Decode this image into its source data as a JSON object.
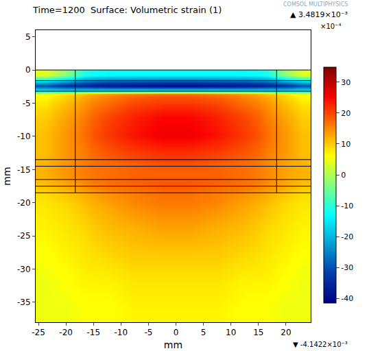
{
  "chart_data": {
    "type": "heatmap",
    "title": "Time=1200  Surface: Volumetric strain (1)",
    "logo": "COMSOL MULTIPHYSICS",
    "x_label": "mm",
    "y_label": "mm",
    "xlim": [
      -25.5,
      24.5
    ],
    "ylim": [
      -38,
      6
    ],
    "xticks": [
      -25,
      -20,
      -15,
      -10,
      -5,
      0,
      5,
      10,
      15,
      20
    ],
    "yticks": [
      -35,
      -30,
      -25,
      -20,
      -15,
      -10,
      -5,
      0,
      5
    ],
    "grid": false,
    "x_edges": [
      -25.5,
      -22,
      -18.3,
      -15,
      -10,
      -5,
      0,
      5,
      10,
      15,
      18.3,
      21.5,
      24.5
    ],
    "y_edges": [
      -38,
      -34,
      -30,
      -26,
      -22,
      -18.5,
      -17.5,
      -16.5,
      -15,
      -13.5,
      -11,
      -8.5,
      -6,
      -4,
      -3.2,
      -1.6,
      0
    ],
    "cells": [
      [
        5,
        5,
        6,
        6,
        7,
        7,
        7,
        7,
        6,
        6,
        5,
        5
      ],
      [
        5,
        6,
        7,
        7,
        8,
        8,
        8,
        8,
        7,
        7,
        6,
        5
      ],
      [
        6,
        7,
        8,
        9,
        10,
        10,
        10,
        10,
        9,
        8,
        7,
        6
      ],
      [
        7,
        8,
        9,
        11,
        12,
        13,
        13,
        12,
        11,
        9,
        8,
        7
      ],
      [
        8,
        9,
        11,
        13,
        15,
        16,
        16,
        15,
        13,
        11,
        9,
        8
      ],
      [
        10,
        12,
        14,
        16,
        17,
        18,
        18,
        17,
        16,
        14,
        12,
        10
      ],
      [
        11,
        13,
        15,
        17,
        18,
        19,
        19,
        18,
        17,
        15,
        13,
        11
      ],
      [
        12,
        14,
        16,
        17,
        18,
        18,
        18,
        18,
        17,
        15,
        13,
        12
      ],
      [
        12,
        14,
        16,
        17,
        18,
        19,
        19,
        18,
        17,
        15,
        13,
        12
      ],
      [
        11,
        14,
        16,
        19,
        21,
        22,
        22,
        21,
        19,
        16,
        14,
        11
      ],
      [
        11,
        14,
        17,
        21,
        24,
        26,
        26,
        24,
        21,
        17,
        14,
        11
      ],
      [
        10,
        13,
        16,
        20,
        23,
        25,
        25,
        23,
        20,
        16,
        13,
        10
      ],
      [
        8,
        11,
        14,
        17,
        20,
        21,
        21,
        20,
        17,
        14,
        11,
        8
      ],
      [
        5,
        8,
        11,
        14,
        16,
        17,
        17,
        16,
        14,
        11,
        8,
        5
      ],
      [
        -30,
        -34,
        -36,
        -38,
        -39,
        -40,
        -40,
        -39,
        -38,
        -36,
        -34,
        -30
      ],
      [
        4,
        -2,
        -11,
        -13,
        -13,
        -13,
        -13,
        -13,
        -13,
        -11,
        -2,
        4
      ]
    ],
    "color_range": [
      -41.422,
      34.819
    ],
    "colorbar_ticks": [
      -40,
      -30,
      -20,
      -10,
      0,
      10,
      20,
      30
    ],
    "colorbar_exponent": "×10⁻⁴",
    "color_max": {
      "value": 34.819,
      "label": "▲ 3.4819×10⁻³"
    },
    "color_min": {
      "value": -41.422,
      "label": "▼ -4.1422×10⁻³"
    },
    "boundaries": [
      {
        "x": [
          -18.3,
          -18.3
        ],
        "y": [
          0,
          -18.5
        ]
      },
      {
        "x": [
          18.3,
          18.3
        ],
        "y": [
          0,
          -18.5
        ]
      },
      {
        "x": [
          -25.5,
          24.5
        ],
        "y": [
          0,
          0
        ]
      },
      {
        "x": [
          -25.5,
          24.5
        ],
        "y": [
          -1.6,
          -1.6
        ]
      },
      {
        "x": [
          -25.5,
          24.5
        ],
        "y": [
          -3.2,
          -3.2
        ]
      },
      {
        "x": [
          -25.5,
          24.5
        ],
        "y": [
          -13.5,
          -13.5
        ]
      },
      {
        "x": [
          -25.5,
          24.5
        ],
        "y": [
          -14.5,
          -14.5
        ]
      },
      {
        "x": [
          -25.5,
          24.5
        ],
        "y": [
          -16.5,
          -16.5
        ]
      },
      {
        "x": [
          -25.5,
          24.5
        ],
        "y": [
          -17.5,
          -17.5
        ]
      },
      {
        "x": [
          -25.5,
          24.5
        ],
        "y": [
          -18.5,
          -18.5
        ]
      }
    ]
  }
}
